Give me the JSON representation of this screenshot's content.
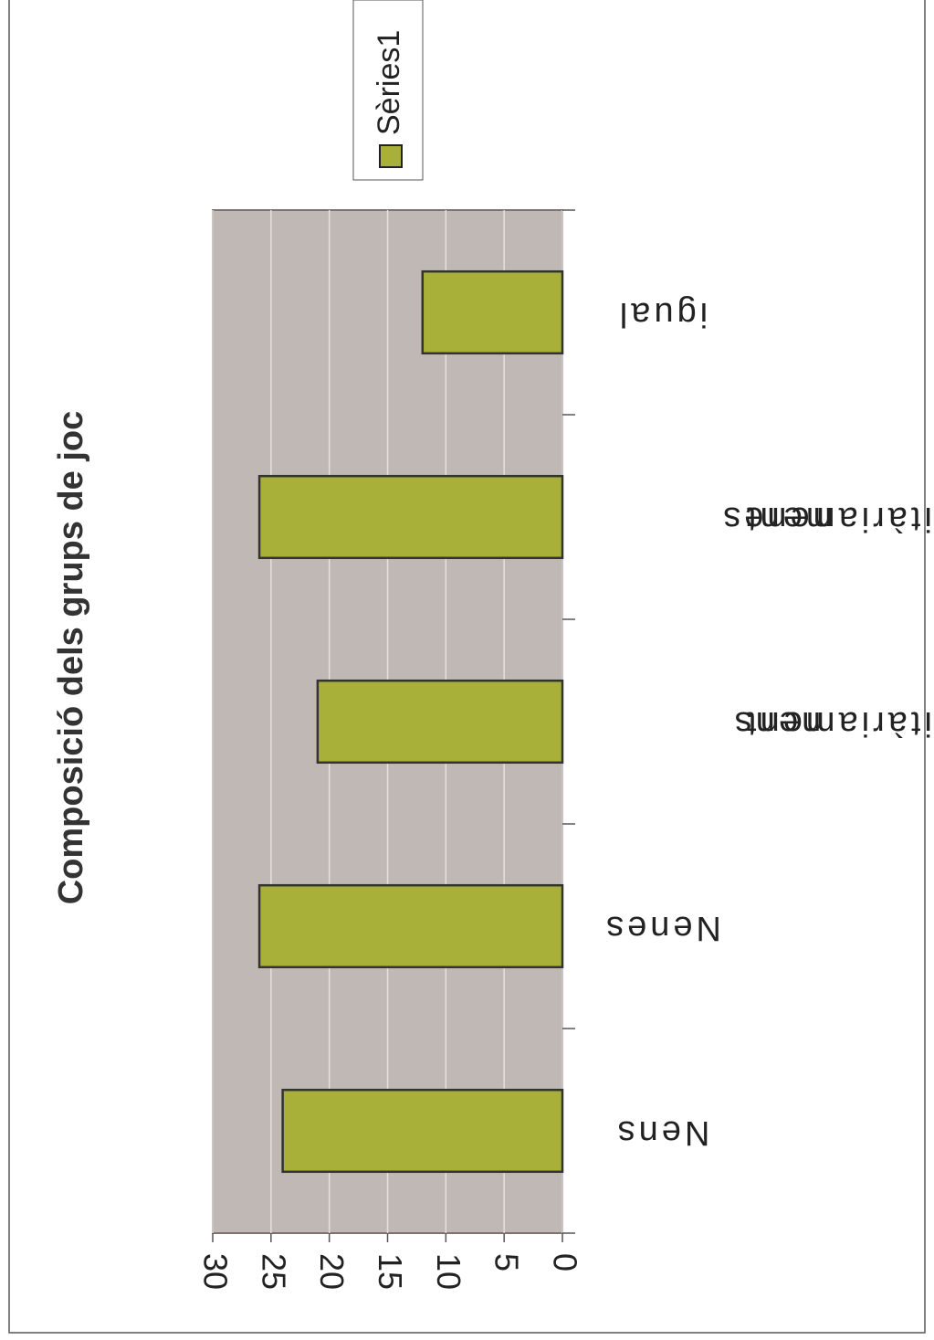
{
  "chart_data": {
    "type": "bar",
    "title": "Composició dels grups de joc",
    "categories": [
      "Nens",
      "Nenes",
      "majoritàriament nens",
      "majoritàriament nenes",
      "igual"
    ],
    "series": [
      {
        "name": "Sèries1",
        "color": "#a8b03a",
        "values": [
          24,
          26,
          21,
          26,
          12
        ]
      }
    ],
    "ylim": [
      0,
      30
    ],
    "yticks": [
      0,
      5,
      10,
      15,
      20,
      25,
      30
    ],
    "grid": true,
    "legend": "top"
  }
}
